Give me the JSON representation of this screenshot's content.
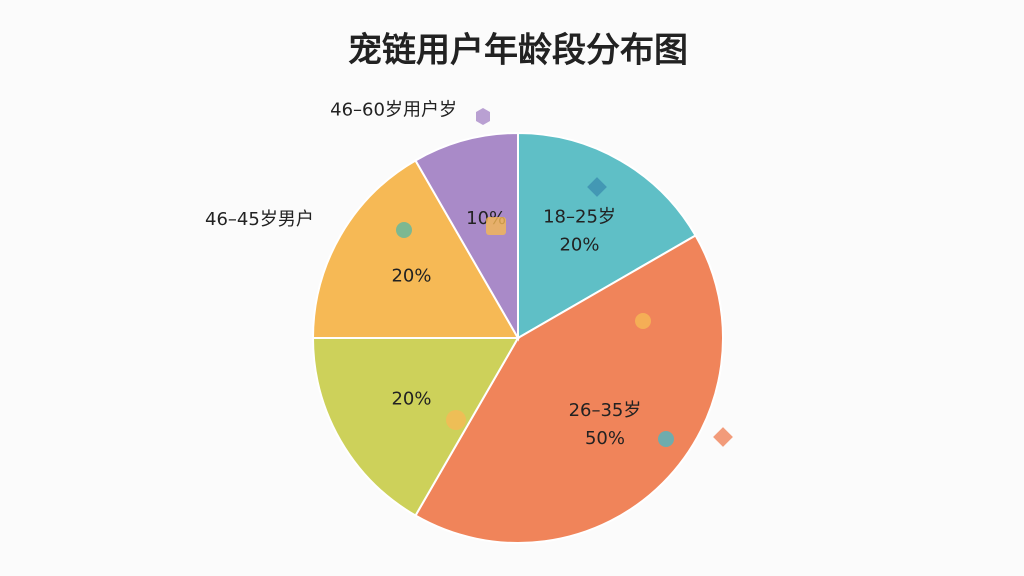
{
  "chart_data": {
    "type": "pie",
    "title": "宠链用户年龄段分布图",
    "categories": [
      "18–25岁",
      "26–35岁",
      null,
      "46–45岁男户",
      "46–60岁用户岁"
    ],
    "values": [
      20,
      50,
      20,
      20,
      10
    ],
    "value_labels": [
      "20%",
      "50%",
      "20%",
      "20%",
      "10%"
    ],
    "colors": [
      "#5fbfc6",
      "#f0845a",
      "#cdd15a",
      "#f6b955",
      "#a98ac8"
    ]
  }
}
